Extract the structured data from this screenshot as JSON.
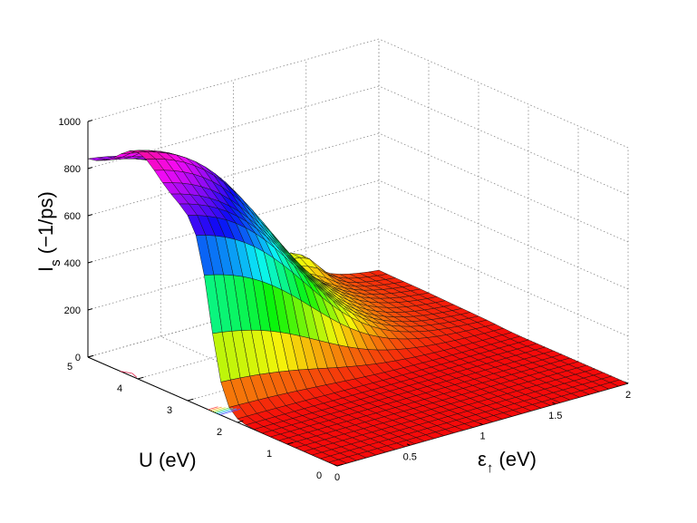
{
  "chart_data": {
    "type": "surface",
    "z_label": {
      "main": "I",
      "sub": "s",
      "rest": " (−1/ps)"
    },
    "x_label": {
      "main": "ε",
      "sub": "↑",
      "rest": " (eV)"
    },
    "y_label": "U (eV)",
    "x_ticks": [
      "0",
      "0.5",
      "1",
      "1.5",
      "2"
    ],
    "y_ticks": [
      "0",
      "1",
      "2",
      "3",
      "4",
      "5"
    ],
    "z_ticks": [
      "0",
      "200",
      "400",
      "600",
      "800",
      "1000"
    ],
    "x_range": [
      0,
      2
    ],
    "y_range": [
      0,
      5
    ],
    "z_range": [
      0,
      1000
    ],
    "grid": true,
    "colormap": "hsv",
    "surface_samples": {
      "x_at_U_5": [
        0,
        0.5,
        1,
        1.5,
        2
      ],
      "z_at_U_5": [
        860,
        600,
        330,
        100,
        0
      ],
      "y_at_eps_0": [
        0,
        1,
        2,
        3,
        4,
        5
      ],
      "z_at_eps_0": [
        0,
        20,
        60,
        830,
        860,
        860
      ]
    }
  }
}
